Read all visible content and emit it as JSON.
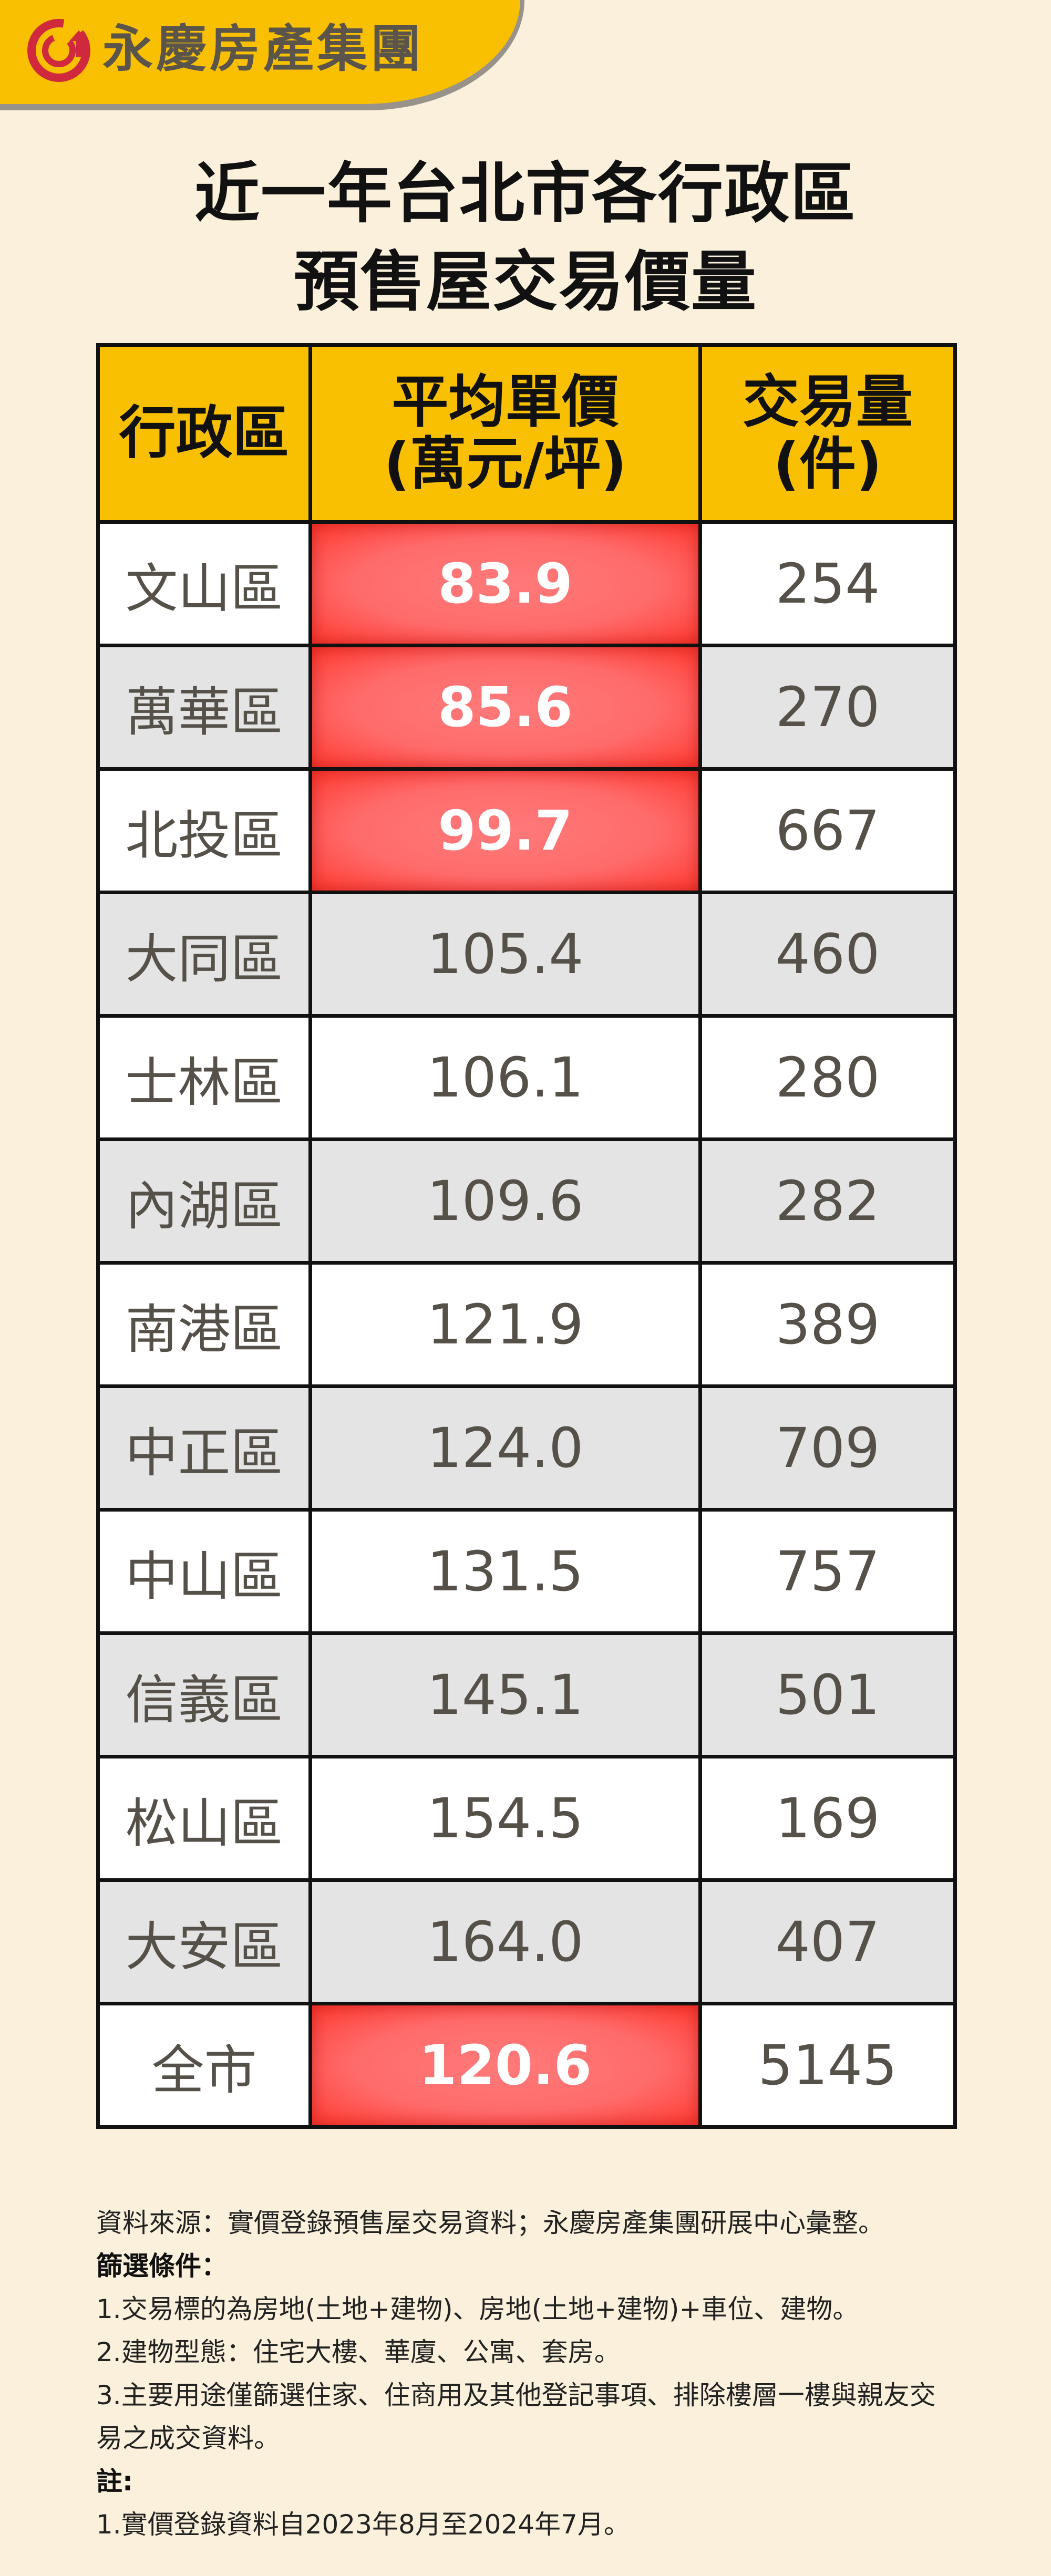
{
  "brand": {
    "name": "永慶房產集團",
    "logo_color": "#d0283c",
    "banner_color": "#f8c000"
  },
  "title": {
    "line1": "近一年台北市各行政區",
    "line2": "預售屋交易價量"
  },
  "table": {
    "headers": {
      "district": "行政區",
      "price_line1": "平均單價",
      "price_line2": "(萬元/坪)",
      "volume_line1": "交易量",
      "volume_line2": "(件)"
    },
    "highlight_color": "#ff4a40",
    "rows": [
      {
        "district": "文山區",
        "price": "83.9",
        "volume": "254",
        "highlight": true
      },
      {
        "district": "萬華區",
        "price": "85.6",
        "volume": "270",
        "highlight": true
      },
      {
        "district": "北投區",
        "price": "99.7",
        "volume": "667",
        "highlight": true
      },
      {
        "district": "大同區",
        "price": "105.4",
        "volume": "460",
        "highlight": false
      },
      {
        "district": "士林區",
        "price": "106.1",
        "volume": "280",
        "highlight": false
      },
      {
        "district": "內湖區",
        "price": "109.6",
        "volume": "282",
        "highlight": false
      },
      {
        "district": "南港區",
        "price": "121.9",
        "volume": "389",
        "highlight": false
      },
      {
        "district": "中正區",
        "price": "124.0",
        "volume": "709",
        "highlight": false
      },
      {
        "district": "中山區",
        "price": "131.5",
        "volume": "757",
        "highlight": false
      },
      {
        "district": "信義區",
        "price": "145.1",
        "volume": "501",
        "highlight": false
      },
      {
        "district": "松山區",
        "price": "154.5",
        "volume": "169",
        "highlight": false
      },
      {
        "district": "大安區",
        "price": "164.0",
        "volume": "407",
        "highlight": false
      },
      {
        "district": "全市",
        "price": "120.6",
        "volume": "5145",
        "highlight": true
      }
    ]
  },
  "notes": {
    "source": "資料來源：實價登錄預售屋交易資料；永慶房產集團研展中心彙整。",
    "filter_heading": "篩選條件：",
    "filters": [
      "1.交易標的為房地(土地+建物)、房地(土地+建物)+車位、建物。",
      "2.建物型態：住宅大樓、華廈、公寓、套房。",
      "3.主要用途僅篩選住家、住商用及其他登記事項、排除樓層一樓與親友交易之成交資料。"
    ],
    "remark_heading": "註:",
    "remarks": [
      "1.實價登錄資料自2023年8月至2024年7月。"
    ]
  }
}
